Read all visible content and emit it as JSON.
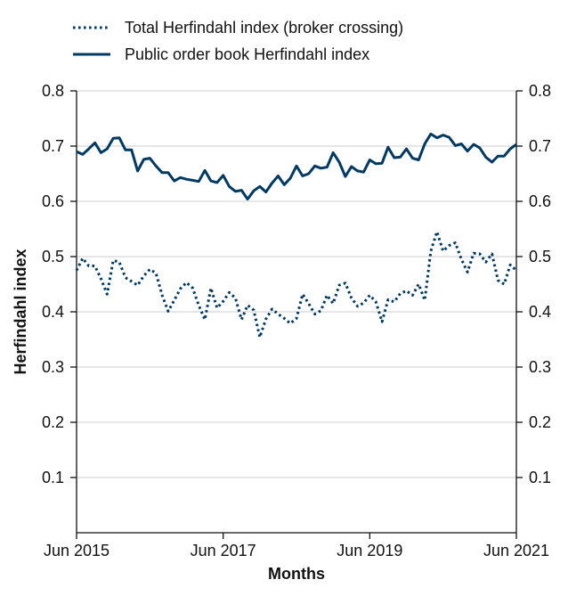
{
  "chart_data": {
    "type": "line",
    "xlabel": "Months",
    "ylabel": "Herfindahl index",
    "ylim": [
      0,
      0.8
    ],
    "y_ticks": [
      "0.1",
      "0.2",
      "0.3",
      "0.4",
      "0.5",
      "0.6",
      "0.7",
      "0.8"
    ],
    "x_ticks": [
      {
        "label": "Jun 2015",
        "month": 0
      },
      {
        "label": "Jun 2017",
        "month": 24
      },
      {
        "label": "Jun 2019",
        "month": 48
      },
      {
        "label": "Jun 2021",
        "month": 72
      }
    ],
    "x_range": [
      0,
      72
    ],
    "grid": "horizontal",
    "legend": "top-left",
    "series": [
      {
        "name": "Total Herfindahl index (broker crossing)",
        "style": "dotted",
        "color": "#003A63",
        "values": [
          0.475,
          0.497,
          0.483,
          0.483,
          0.46,
          0.432,
          0.493,
          0.49,
          0.462,
          0.455,
          0.448,
          0.465,
          0.477,
          0.47,
          0.43,
          0.401,
          0.421,
          0.442,
          0.453,
          0.443,
          0.412,
          0.386,
          0.443,
          0.407,
          0.419,
          0.435,
          0.425,
          0.386,
          0.412,
          0.403,
          0.354,
          0.387,
          0.405,
          0.396,
          0.388,
          0.379,
          0.388,
          0.432,
          0.415,
          0.396,
          0.402,
          0.43,
          0.415,
          0.448,
          0.452,
          0.425,
          0.41,
          0.416,
          0.43,
          0.418,
          0.382,
          0.422,
          0.418,
          0.433,
          0.438,
          0.43,
          0.45,
          0.421,
          0.51,
          0.545,
          0.51,
          0.52,
          0.525,
          0.495,
          0.472,
          0.506,
          0.505,
          0.49,
          0.505,
          0.457,
          0.45,
          0.485,
          0.475
        ]
      },
      {
        "name": "Public order book Herfindahl index",
        "style": "solid",
        "color": "#003A63",
        "values": [
          0.69,
          0.685,
          0.695,
          0.706,
          0.688,
          0.695,
          0.714,
          0.715,
          0.693,
          0.693,
          0.655,
          0.676,
          0.678,
          0.664,
          0.652,
          0.652,
          0.637,
          0.643,
          0.64,
          0.638,
          0.636,
          0.656,
          0.637,
          0.634,
          0.647,
          0.627,
          0.618,
          0.62,
          0.604,
          0.619,
          0.627,
          0.617,
          0.633,
          0.646,
          0.63,
          0.642,
          0.664,
          0.646,
          0.65,
          0.664,
          0.66,
          0.662,
          0.688,
          0.671,
          0.645,
          0.663,
          0.655,
          0.653,
          0.675,
          0.668,
          0.669,
          0.698,
          0.679,
          0.68,
          0.695,
          0.678,
          0.675,
          0.704,
          0.722,
          0.715,
          0.72,
          0.716,
          0.701,
          0.704,
          0.691,
          0.703,
          0.697,
          0.68,
          0.671,
          0.682,
          0.682,
          0.695,
          0.703
        ]
      }
    ]
  }
}
